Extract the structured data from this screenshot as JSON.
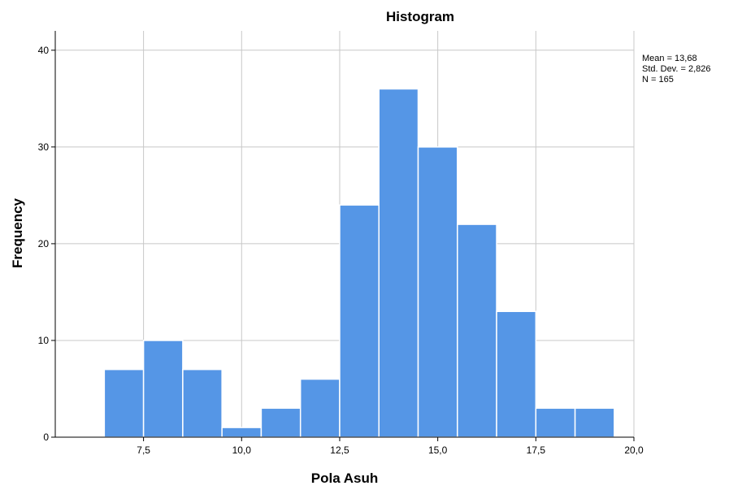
{
  "chart_data": {
    "type": "bar",
    "title": "Histogram",
    "xlabel": "Pola Asuh",
    "ylabel": "Frequency",
    "bin_width": 1,
    "x_ticks": [
      7.5,
      10.0,
      12.5,
      15.0,
      17.5,
      20.0
    ],
    "x_tick_labels": [
      "7,5",
      "10,0",
      "12,5",
      "15,0",
      "17,5",
      "20,0"
    ],
    "y_ticks": [
      0,
      10,
      20,
      30,
      40
    ],
    "y_tick_labels": [
      "0",
      "10",
      "20",
      "30",
      "40"
    ],
    "xlim": [
      5.25,
      20.0
    ],
    "ylim": [
      0,
      42
    ],
    "grid": true,
    "bins": [
      {
        "x": 7,
        "count": 7
      },
      {
        "x": 8,
        "count": 10
      },
      {
        "x": 9,
        "count": 7
      },
      {
        "x": 10,
        "count": 1
      },
      {
        "x": 11,
        "count": 3
      },
      {
        "x": 12,
        "count": 6
      },
      {
        "x": 13,
        "count": 24
      },
      {
        "x": 14,
        "count": 36
      },
      {
        "x": 15,
        "count": 30
      },
      {
        "x": 16,
        "count": 22
      },
      {
        "x": 17,
        "count": 13
      },
      {
        "x": 18,
        "count": 3
      },
      {
        "x": 19,
        "count": 3
      }
    ],
    "bar_color": "#5596e6",
    "legend_position": "top-right",
    "stats": {
      "mean_label": "Mean = 13,68",
      "std_label": "Std. Dev. = 2,826",
      "n_label": "N = 165"
    }
  }
}
